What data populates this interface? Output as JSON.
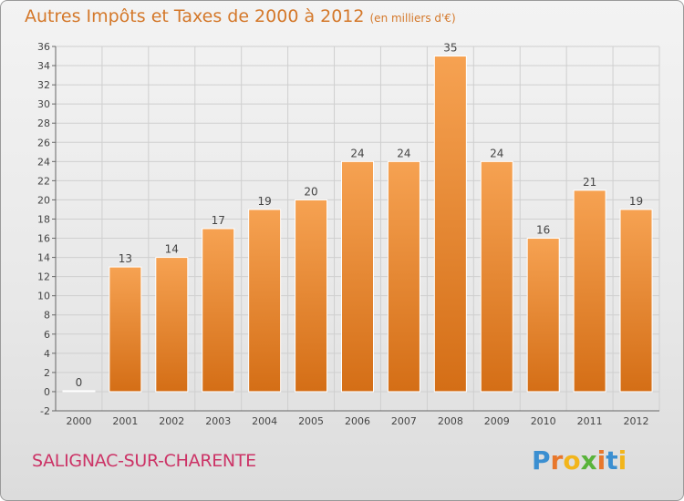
{
  "title": "Autres Impôts et Taxes de 2000 à 2012",
  "unit": "(en milliers d'€)",
  "commune": "SALIGNAC-SUR-CHARENTE",
  "logo": {
    "letters": [
      "P",
      "r",
      "o",
      "x",
      "i",
      "t",
      "i"
    ],
    "colors": [
      "#3b8fd1",
      "#e8772b",
      "#f2b51b",
      "#59b33a",
      "#e8772b",
      "#3b8fd1",
      "#f2b51b"
    ]
  },
  "colors": {
    "bar_top": "#f6a252",
    "bar_bottom": "#d46e16",
    "title": "#d4782a",
    "commune": "#cc3366"
  },
  "chart_data": {
    "type": "bar",
    "categories": [
      "2000",
      "2001",
      "2002",
      "2003",
      "2004",
      "2005",
      "2006",
      "2007",
      "2008",
      "2009",
      "2010",
      "2011",
      "2012"
    ],
    "values": [
      0,
      13,
      14,
      17,
      19,
      20,
      24,
      24,
      35,
      24,
      16,
      21,
      19
    ],
    "data_labels": [
      "0",
      "13",
      "14",
      "17",
      "19",
      "20",
      "24",
      "24",
      "35",
      "24",
      "16",
      "21",
      "19"
    ],
    "ylim": [
      -2,
      36
    ],
    "yticks": [
      -2,
      0,
      2,
      4,
      6,
      8,
      10,
      12,
      14,
      16,
      18,
      20,
      22,
      24,
      26,
      28,
      30,
      32,
      34,
      36
    ],
    "grid": true,
    "xlabel": "",
    "ylabel": ""
  }
}
